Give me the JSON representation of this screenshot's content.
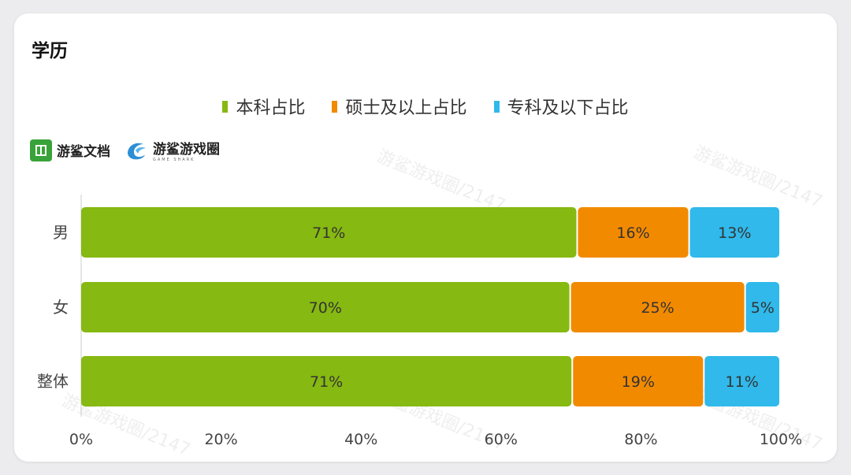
{
  "card": {
    "title": "学历"
  },
  "logos": {
    "doc_name": "游鲨文档",
    "brand_name": "游鲨游戏圈",
    "brand_sub": "GAME SHARK"
  },
  "watermark_text": "游鲨游戏圈/2147",
  "colors": {
    "bachelor": "#86b911",
    "master": "#f28a00",
    "college": "#30b9ea",
    "axis_text": "#444444",
    "bar_text": "#333333"
  },
  "chart_data": {
    "type": "bar",
    "orientation": "horizontal",
    "stacked": true,
    "categories": [
      "男",
      "女",
      "整体"
    ],
    "series": [
      {
        "name": "本科占比",
        "color": "#86b911",
        "values": [
          71,
          70,
          71
        ],
        "labels": [
          "71%",
          "70%",
          "71%"
        ]
      },
      {
        "name": "硕士及以上占比",
        "color": "#f28a00",
        "values": [
          16,
          25,
          19
        ],
        "labels": [
          "16%",
          "25%",
          "19%"
        ]
      },
      {
        "name": "专科及以下占比",
        "color": "#30b9ea",
        "values": [
          13,
          5,
          11
        ],
        "labels": [
          "13%",
          "5%",
          "11%"
        ]
      }
    ],
    "xlim": [
      0,
      100
    ],
    "xticks": [
      "0%",
      "20%",
      "40%",
      "60%",
      "80%",
      "100%"
    ],
    "grid": false,
    "legend": "top-center"
  }
}
